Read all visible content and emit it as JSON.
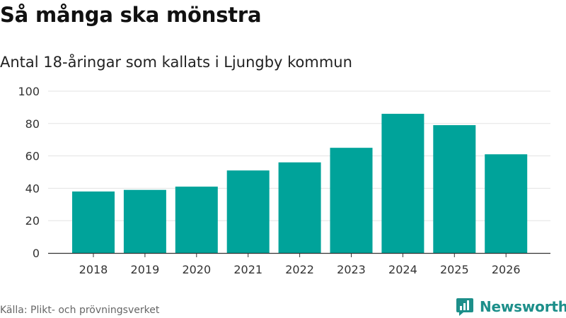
{
  "title": "Så många ska mönstra",
  "subtitle": "Antal 18-åringar som kallats i Ljungby kommun",
  "source": "Källa: Plikt- och prövningsverket",
  "brand": {
    "name": "Newsworthy",
    "icon": "newsworthy-logo-icon",
    "color": "#1d8f8a"
  },
  "colors": {
    "bar": "#00a39a",
    "grid": "#e3e3e3",
    "axis": "#333333",
    "tick_text": "#333333"
  },
  "chart_data": {
    "type": "bar",
    "title": "Så många ska mönstra",
    "subtitle": "Antal 18-åringar som kallats i Ljungby kommun",
    "xlabel": "",
    "ylabel": "",
    "categories": [
      "2018",
      "2019",
      "2020",
      "2021",
      "2022",
      "2023",
      "2024",
      "2025",
      "2026"
    ],
    "values": [
      38,
      39,
      41,
      51,
      56,
      65,
      86,
      79,
      61
    ],
    "ylim": [
      0,
      100
    ],
    "yticks": [
      "0",
      "20",
      "40",
      "60",
      "80",
      "100"
    ],
    "grid": true,
    "legend": "none"
  }
}
